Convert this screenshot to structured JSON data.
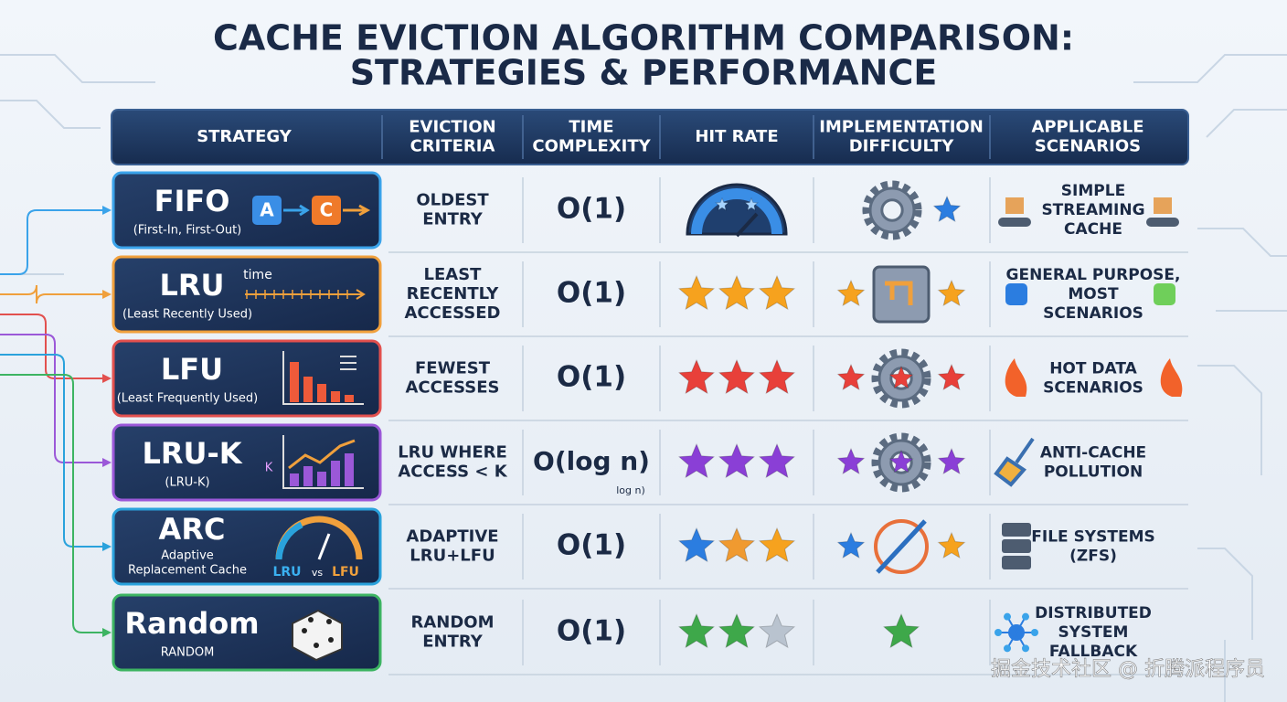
{
  "title": [
    "CACHE EVICTION ALGORITHM COMPARISON:",
    "STRATEGIES & PERFORMANCE"
  ],
  "header": [
    [
      "STRATEGY"
    ],
    [
      "EVICTION",
      "CRITERIA"
    ],
    [
      "TIME",
      "COMPLEXITY"
    ],
    [
      "HIT RATE"
    ],
    [
      "IMPLEMENTATION",
      "DIFFICULTY"
    ],
    [
      "APPLICABLE",
      "SCENARIOS"
    ]
  ],
  "rows": [
    {
      "name": "FIFO",
      "full": [
        "(First-In, First-Out)"
      ],
      "icon_text": [
        "A",
        "C"
      ],
      "criteria": [
        "OLDEST",
        "ENTRY"
      ],
      "complexity": "O(1)",
      "scenario": [
        "SIMPLE",
        "STREAMING",
        "CACHE"
      ]
    },
    {
      "name": "LRU",
      "full": [
        "(Least Recently Used)"
      ],
      "icon_text": [
        "time"
      ],
      "criteria": [
        "LEAST",
        "RECENTLY",
        "ACCESSED"
      ],
      "complexity": "O(1)",
      "scenario": [
        "GENERAL PURPOSE,",
        "MOST",
        "SCENARIOS"
      ]
    },
    {
      "name": "LFU",
      "full": [
        "(Least Frequently Used)"
      ],
      "icon_text": [],
      "criteria": [
        "FEWEST",
        "ACCESSES"
      ],
      "complexity": "O(1)",
      "scenario": [
        "HOT DATA",
        "SCENARIOS"
      ]
    },
    {
      "name": "LRU-K",
      "full": [
        "(LRU-K)"
      ],
      "icon_text": [
        "K"
      ],
      "criteria": [
        "LRU WHERE",
        "ACCESS < K"
      ],
      "complexity": "O(log n)",
      "complexity_note": "log n)",
      "scenario": [
        "ANTI-CACHE",
        "POLLUTION"
      ]
    },
    {
      "name": "ARC",
      "full": [
        "Adaptive",
        "Replacement Cache"
      ],
      "icon_text": [
        "LRU",
        "vs",
        "LFU"
      ],
      "criteria": [
        "ADAPTIVE",
        "LRU+LFU"
      ],
      "complexity": "O(1)",
      "scenario": [
        "FILE SYSTEMS",
        "(ZFS)"
      ]
    },
    {
      "name": "Random",
      "full": [
        "RANDOM"
      ],
      "icon_text": [],
      "criteria": [
        "RANDOM",
        "ENTRY"
      ],
      "complexity": "O(1)",
      "scenario": [
        "DISTRIBUTED",
        "SYSTEM",
        "FALLBACK"
      ]
    }
  ],
  "watermark": "掘金技术社区 @ 折腾派程序员"
}
